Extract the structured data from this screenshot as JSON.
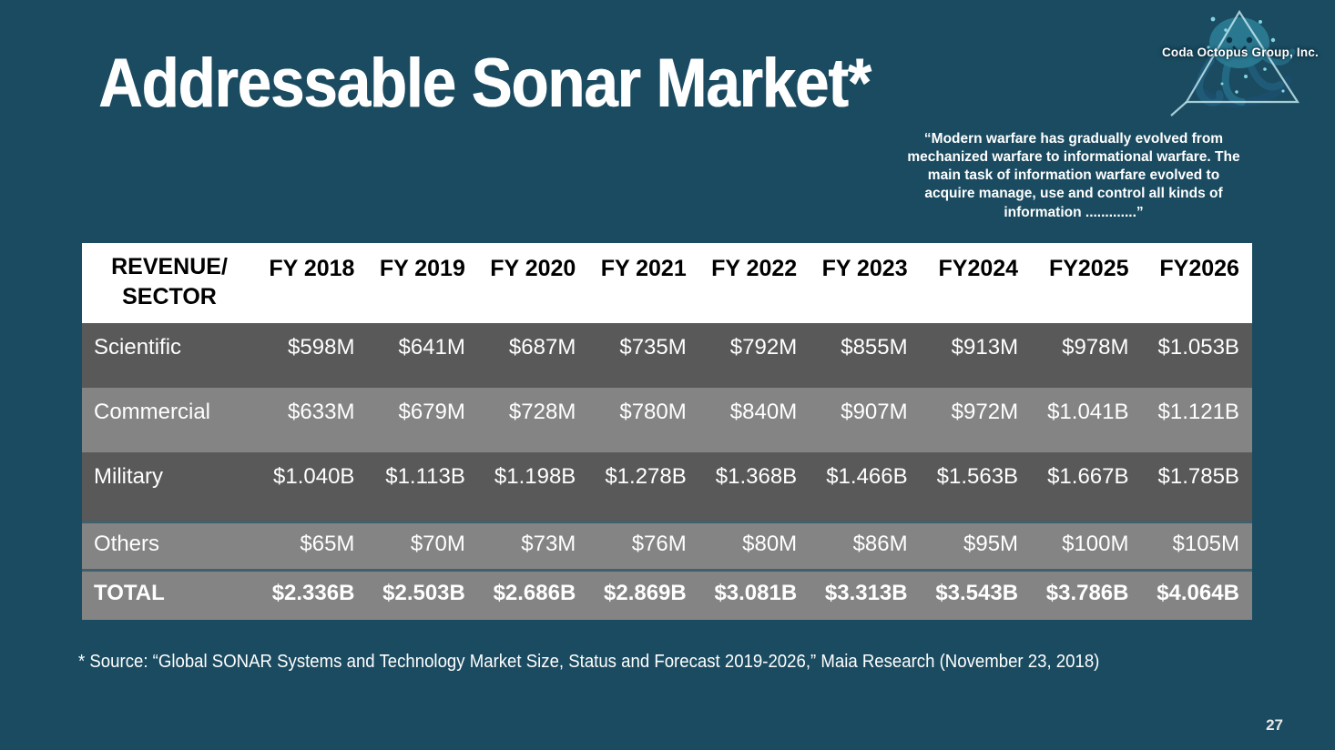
{
  "slide": {
    "title": "Addressable Sonar Market*",
    "quote": "“Modern warfare has gradually evolved from mechanized warfare to informational warfare. The main task of information warfare evolved to acquire manage, use and control all kinds of information .............”",
    "footnote": "* Source: “Global SONAR Systems and Technology Market Size, Status and Forecast 2019-2026,” Maia Research (November 23, 2018)",
    "page_number": "27"
  },
  "logo": {
    "text": "Coda Octopus Group, Inc.",
    "icon": "octopus-triangle-logo"
  },
  "table": {
    "sector_header": [
      "REVENUE/",
      "SECTOR"
    ],
    "year_headers": [
      "FY 2018",
      "FY 2019",
      "FY 2020",
      "FY 2021",
      "FY 2022",
      "FY 2023",
      "FY2024",
      "FY2025",
      "FY2026"
    ],
    "rows": [
      {
        "label": "Scientific",
        "values": [
          "$598M",
          "$641M",
          "$687M",
          "$735M",
          "$792M",
          "$855M",
          "$913M",
          "$978M",
          "$1.053B"
        ],
        "shade": "dark",
        "bold": false
      },
      {
        "label": "Commercial",
        "values": [
          "$633M",
          "$679M",
          "$728M",
          "$780M",
          "$840M",
          "$907M",
          "$972M",
          "$1.041B",
          "$1.121B"
        ],
        "shade": "light",
        "bold": false
      },
      {
        "label": "Military",
        "values": [
          "$1.040B",
          "$1.113B",
          "$1.198B",
          "$1.278B",
          "$1.368B",
          "$1.466B",
          "$1.563B",
          "$1.667B",
          "$1.785B"
        ],
        "shade": "dark",
        "bold": false
      },
      {
        "label": "Others",
        "values": [
          "$65M",
          "$70M",
          "$73M",
          "$76M",
          "$80M",
          "$86M",
          "$95M",
          "$100M",
          "$105M"
        ],
        "shade": "light",
        "bold": false
      },
      {
        "label": "TOTAL",
        "values": [
          "$2.336B",
          "$2.503B",
          "$2.686B",
          "$2.869B",
          "$3.081B",
          "$3.313B",
          "$3.543B",
          "$3.786B",
          "$4.064B"
        ],
        "shade": "light",
        "bold": true
      }
    ]
  },
  "colors": {
    "background": "#1A4B60",
    "header_bg": "#FFFFFF",
    "row_dark": "#595959",
    "row_light": "#848484",
    "table_text": "#FFFFFF",
    "header_text": "#000000"
  }
}
